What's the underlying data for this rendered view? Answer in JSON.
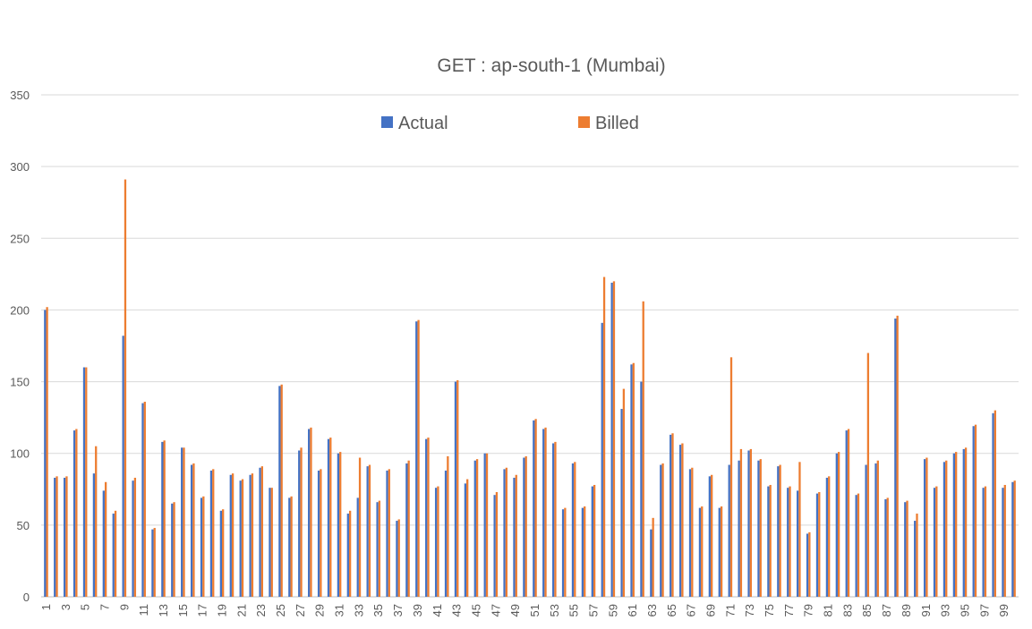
{
  "chart_data": {
    "type": "bar",
    "title": "GET : ap-south-1 (Mumbai)",
    "xlabel": "",
    "ylabel": "",
    "ylim": [
      0,
      350
    ],
    "yticks": [
      0,
      50,
      100,
      150,
      200,
      250,
      300,
      350
    ],
    "grid": true,
    "legend_position": "top-center",
    "x_tick_labels_shown": "odd categories, rotated vertical",
    "categories": [
      1,
      2,
      3,
      4,
      5,
      6,
      7,
      8,
      9,
      10,
      11,
      12,
      13,
      14,
      15,
      16,
      17,
      18,
      19,
      20,
      21,
      22,
      23,
      24,
      25,
      26,
      27,
      28,
      29,
      30,
      31,
      32,
      33,
      34,
      35,
      36,
      37,
      38,
      39,
      40,
      41,
      42,
      43,
      44,
      45,
      46,
      47,
      48,
      49,
      50,
      51,
      52,
      53,
      54,
      55,
      56,
      57,
      58,
      59,
      60,
      61,
      62,
      63,
      64,
      65,
      66,
      67,
      68,
      69,
      70,
      71,
      72,
      73,
      74,
      75,
      76,
      77,
      78,
      79,
      80,
      81,
      82,
      83,
      84,
      85,
      86,
      87,
      88,
      89,
      90,
      91,
      92,
      93,
      94,
      95,
      96,
      97,
      98,
      99,
      100
    ],
    "series": [
      {
        "name": "Actual",
        "color": "#4472c4",
        "values": [
          200,
          83,
          83,
          116,
          160,
          86,
          74,
          58,
          182,
          81,
          135,
          47,
          108,
          65,
          104,
          92,
          69,
          88,
          60,
          85,
          81,
          85,
          90,
          76,
          147,
          69,
          102,
          117,
          88,
          110,
          100,
          58,
          69,
          91,
          66,
          88,
          53,
          93,
          192,
          110,
          76,
          88,
          150,
          79,
          95,
          100,
          71,
          89,
          83,
          97,
          123,
          117,
          107,
          61,
          93,
          62,
          77,
          191,
          219,
          131,
          162,
          150,
          47,
          92,
          113,
          106,
          89,
          62,
          84,
          62,
          92,
          95,
          102,
          95,
          77,
          91,
          76,
          74,
          44,
          72,
          83,
          100,
          116,
          71,
          92,
          93,
          68,
          194,
          66,
          53,
          96,
          76,
          94,
          100,
          103,
          119,
          76,
          128,
          76,
          80
        ]
      },
      {
        "name": "Billed",
        "color": "#ed7d31",
        "values": [
          202,
          84,
          84,
          117,
          160,
          105,
          80,
          60,
          291,
          83,
          136,
          48,
          109,
          66,
          104,
          93,
          70,
          89,
          61,
          86,
          82,
          86,
          91,
          76,
          148,
          70,
          104,
          118,
          89,
          111,
          101,
          60,
          97,
          92,
          67,
          89,
          54,
          95,
          193,
          111,
          77,
          98,
          151,
          82,
          96,
          100,
          73,
          90,
          85,
          98,
          124,
          118,
          108,
          62,
          94,
          63,
          78,
          223,
          220,
          145,
          163,
          206,
          55,
          93,
          114,
          107,
          90,
          63,
          85,
          63,
          167,
          103,
          103,
          96,
          78,
          92,
          77,
          94,
          45,
          73,
          84,
          101,
          117,
          72,
          170,
          95,
          69,
          196,
          67,
          58,
          97,
          77,
          95,
          101,
          104,
          120,
          77,
          130,
          78,
          81
        ]
      }
    ]
  }
}
